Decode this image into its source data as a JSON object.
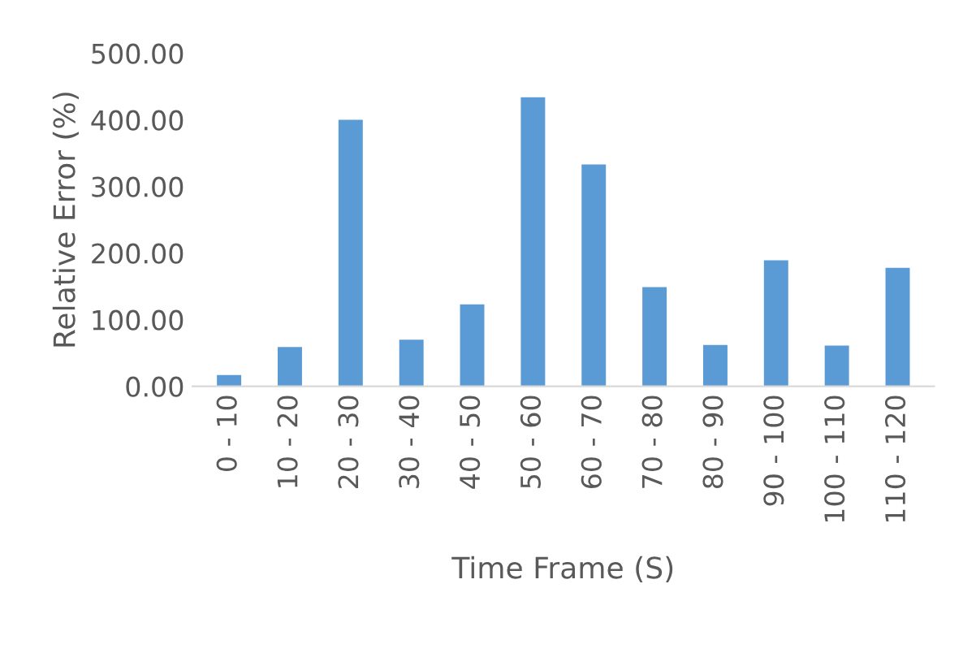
{
  "chart_data": {
    "type": "bar",
    "xlabel": "Time Frame (S)",
    "ylabel": "Relative Error (%)",
    "categories": [
      "0 - 10",
      "10 - 20",
      "20 - 30",
      "30 - 40",
      "40 - 50",
      "50 - 60",
      "60 - 70",
      "70 - 80",
      "80 - 90",
      "90 - 100",
      "100 - 110",
      "110 - 120"
    ],
    "values": [
      17,
      59,
      400,
      70,
      123,
      434,
      333,
      149,
      62,
      189,
      61,
      178
    ],
    "color": "#5b9bd5",
    "ylim": [
      0,
      500
    ],
    "yticks": [
      {
        "value": 0,
        "label": "0.00"
      },
      {
        "value": 100,
        "label": "100.00"
      },
      {
        "value": 200,
        "label": "200.00"
      },
      {
        "value": 300,
        "label": "300.00"
      },
      {
        "value": 400,
        "label": "400.00"
      },
      {
        "value": 500,
        "label": "500.00"
      }
    ],
    "grid": false,
    "legend": false
  }
}
